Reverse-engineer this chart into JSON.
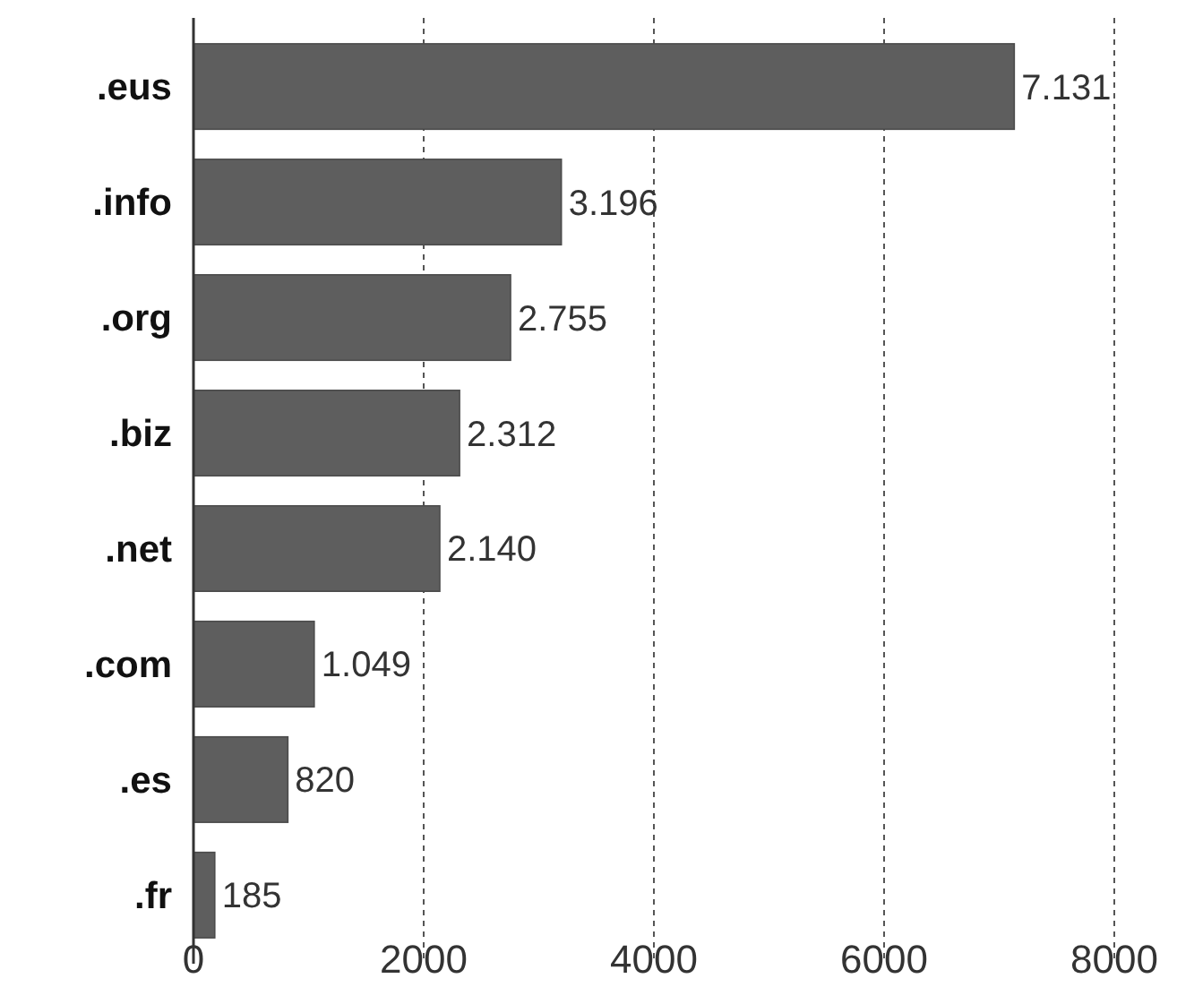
{
  "chart_data": {
    "type": "bar",
    "orientation": "horizontal",
    "categories": [
      ".eus",
      ".info",
      ".org",
      ".biz",
      ".net",
      ".com",
      ".es",
      ".fr"
    ],
    "values": [
      7131,
      3196,
      2755,
      2312,
      2140,
      1049,
      820,
      185
    ],
    "value_labels": [
      "7.131",
      "3.196",
      "2.755",
      "2.312",
      "2.140",
      "1.049",
      "820",
      "185"
    ],
    "color": "#5e5e5e",
    "xlim": [
      0,
      8000
    ],
    "xticks": [
      0,
      2000,
      4000,
      6000,
      8000
    ],
    "grid": "x"
  }
}
